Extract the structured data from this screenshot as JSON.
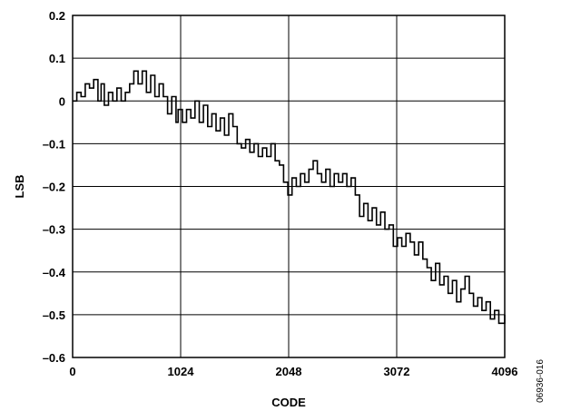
{
  "chart_data": {
    "type": "line",
    "title": "",
    "xlabel": "CODE",
    "ylabel": "LSB",
    "xlim": [
      0,
      4096
    ],
    "ylim": [
      -0.6,
      0.2
    ],
    "x_ticks": [
      0,
      1024,
      2048,
      3072,
      4096
    ],
    "x_tick_labels": [
      "0",
      "1024",
      "2048",
      "3072",
      "4096"
    ],
    "y_ticks": [
      0.2,
      0.1,
      0,
      -0.1,
      -0.2,
      -0.3,
      -0.4,
      -0.5,
      -0.6
    ],
    "y_tick_labels": [
      "0.2",
      "0.1",
      "0",
      "–0.1",
      "–0.2",
      "–0.3",
      "–0.4",
      "–0.5",
      "–0.6"
    ],
    "grid": true,
    "legend": "none",
    "figure_id": "06936-016",
    "line_color": "#000000",
    "series": [
      {
        "x": [
          0,
          40,
          80,
          120,
          160,
          200,
          240,
          270,
          300,
          340,
          380,
          420,
          460,
          500,
          540,
          580,
          620,
          660,
          700,
          740,
          780,
          820,
          860,
          900,
          940,
          980,
          1000,
          1040,
          1080,
          1120,
          1160,
          1200,
          1240,
          1280,
          1320,
          1360,
          1400,
          1440,
          1480,
          1520,
          1560,
          1600,
          1640,
          1680,
          1720,
          1760,
          1800,
          1840,
          1880,
          1920,
          1960,
          2000,
          2040,
          2080,
          2120,
          2160,
          2200,
          2240,
          2280,
          2320,
          2360,
          2400,
          2440,
          2480,
          2520,
          2560,
          2600,
          2640,
          2680,
          2720,
          2760,
          2800,
          2840,
          2880,
          2920,
          2960,
          3000,
          3040,
          3080,
          3120,
          3160,
          3200,
          3240,
          3280,
          3320,
          3360,
          3400,
          3440,
          3480,
          3520,
          3560,
          3600,
          3640,
          3680,
          3720,
          3760,
          3800,
          3840,
          3880,
          3920,
          3960,
          4000,
          4040,
          4096
        ],
        "y": [
          0.0,
          0.02,
          0.01,
          0.04,
          0.03,
          0.05,
          0.0,
          0.04,
          -0.01,
          0.02,
          0.0,
          0.03,
          0.0,
          0.02,
          0.04,
          0.07,
          0.04,
          0.07,
          0.02,
          0.06,
          0.01,
          0.04,
          0.01,
          -0.03,
          0.01,
          -0.05,
          -0.02,
          -0.05,
          -0.02,
          -0.04,
          0.0,
          -0.05,
          -0.01,
          -0.06,
          -0.03,
          -0.07,
          -0.04,
          -0.08,
          -0.03,
          -0.06,
          -0.1,
          -0.11,
          -0.09,
          -0.12,
          -0.1,
          -0.13,
          -0.11,
          -0.13,
          -0.1,
          -0.14,
          -0.15,
          -0.19,
          -0.22,
          -0.18,
          -0.2,
          -0.17,
          -0.19,
          -0.16,
          -0.14,
          -0.17,
          -0.19,
          -0.16,
          -0.2,
          -0.17,
          -0.19,
          -0.17,
          -0.2,
          -0.18,
          -0.22,
          -0.27,
          -0.24,
          -0.28,
          -0.25,
          -0.29,
          -0.26,
          -0.3,
          -0.29,
          -0.34,
          -0.32,
          -0.34,
          -0.31,
          -0.33,
          -0.36,
          -0.33,
          -0.37,
          -0.39,
          -0.42,
          -0.38,
          -0.43,
          -0.41,
          -0.45,
          -0.42,
          -0.47,
          -0.44,
          -0.41,
          -0.45,
          -0.48,
          -0.46,
          -0.49,
          -0.47,
          -0.51,
          -0.49,
          -0.52,
          -0.5
        ]
      }
    ]
  }
}
